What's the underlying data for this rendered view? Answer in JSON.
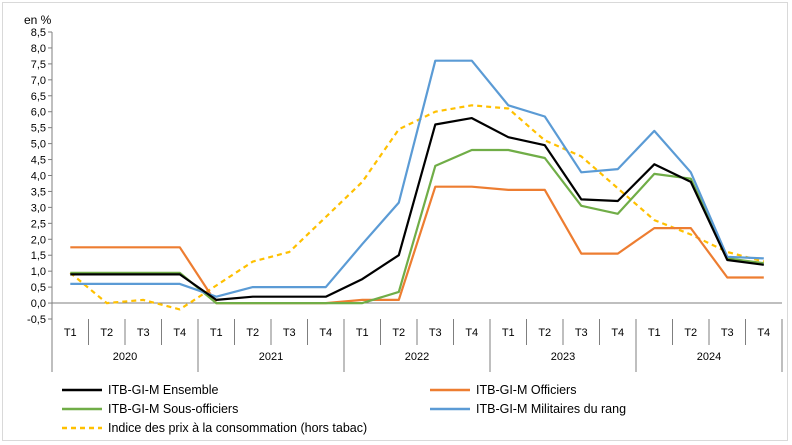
{
  "chart_data": {
    "type": "line",
    "unit_label": "en %",
    "y_ticks": [
      "8,5",
      "8,0",
      "7,5",
      "7,0",
      "6,5",
      "6,0",
      "5,5",
      "5,0",
      "4,5",
      "4,0",
      "3,5",
      "3,0",
      "2,5",
      "2,0",
      "1,5",
      "1,0",
      "0,5",
      "0,0",
      "-0,5"
    ],
    "ylim": [
      -0.5,
      8.5
    ],
    "categories": [
      "T1",
      "T2",
      "T3",
      "T4",
      "T1",
      "T2",
      "T3",
      "T4",
      "T1",
      "T2",
      "T3",
      "T4",
      "T1",
      "T2",
      "T3",
      "T4",
      "T1",
      "T2",
      "T3",
      "T4"
    ],
    "years": [
      "2020",
      "2021",
      "2022",
      "2023",
      "2024"
    ],
    "grid": false,
    "legend_position": "bottom",
    "series": [
      {
        "name": "ITB-GI-M Ensemble",
        "color": "#000000",
        "style": "solid",
        "values": [
          0.9,
          0.9,
          0.9,
          0.9,
          0.1,
          0.2,
          0.2,
          0.2,
          0.75,
          1.5,
          5.6,
          5.8,
          5.2,
          4.95,
          3.25,
          3.2,
          4.35,
          3.8,
          1.35,
          1.2
        ]
      },
      {
        "name": "ITB-GI-M Officiers",
        "color": "#ed7d31",
        "style": "solid",
        "values": [
          1.75,
          1.75,
          1.75,
          1.75,
          0.0,
          0.0,
          0.0,
          0.0,
          0.1,
          0.1,
          3.65,
          3.65,
          3.55,
          3.55,
          1.55,
          1.55,
          2.35,
          2.35,
          0.8,
          0.8
        ]
      },
      {
        "name": "ITB-GI-M Sous-officiers",
        "color": "#70ad47",
        "style": "solid",
        "values": [
          0.95,
          0.95,
          0.95,
          0.95,
          0.0,
          0.0,
          0.0,
          0.0,
          0.0,
          0.35,
          4.3,
          4.8,
          4.8,
          4.55,
          3.05,
          2.8,
          4.05,
          3.9,
          1.4,
          1.25
        ]
      },
      {
        "name": "ITB-GI-M Militaires du rang",
        "color": "#5b9bd5",
        "style": "solid",
        "values": [
          0.6,
          0.6,
          0.6,
          0.6,
          0.2,
          0.5,
          0.5,
          0.5,
          1.85,
          3.15,
          7.6,
          7.6,
          6.2,
          5.85,
          4.1,
          4.2,
          5.4,
          4.1,
          1.45,
          1.4
        ]
      },
      {
        "name": "Indice des prix à la consommation (hors tabac)",
        "color": "#ffc000",
        "style": "dashed",
        "values": [
          0.95,
          0.0,
          0.1,
          -0.2,
          0.55,
          1.3,
          1.6,
          2.7,
          3.8,
          5.45,
          6.0,
          6.2,
          6.1,
          5.1,
          4.6,
          3.6,
          2.6,
          2.15,
          1.6,
          1.3
        ]
      }
    ]
  }
}
